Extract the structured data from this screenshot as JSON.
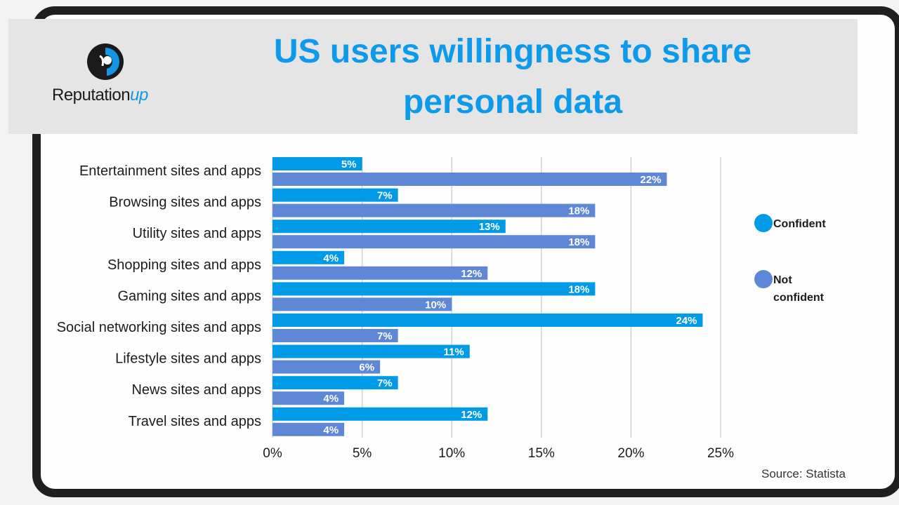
{
  "title_lines": [
    "US users willingness to share",
    "personal data"
  ],
  "logo": {
    "text_main": "Reputation",
    "text_accent": "up"
  },
  "source": "Source: Statista",
  "colors": {
    "confident": "#019ae6",
    "not_confident": "#5e87d6",
    "title": "#0e9aea",
    "grid": "#c8c8c8"
  },
  "chart_data": {
    "type": "bar",
    "orientation": "horizontal",
    "title": "US users willingness to share personal data",
    "categories": [
      "Entertainment sites and apps",
      "Browsing sites and apps",
      "Utility sites and apps",
      "Shopping sites and apps",
      "Gaming sites and apps",
      "Social networking sites and apps",
      "Lifestyle sites and apps",
      "News sites and apps",
      "Travel sites and apps"
    ],
    "series": [
      {
        "name": "Confident",
        "color": "#019ae6",
        "values": [
          5,
          7,
          13,
          4,
          18,
          24,
          11,
          7,
          12
        ]
      },
      {
        "name": "Not confident",
        "color": "#5e87d6",
        "values": [
          22,
          18,
          18,
          12,
          10,
          7,
          6,
          4,
          4
        ]
      }
    ],
    "xlim": [
      0,
      25
    ],
    "xticks": [
      "0%",
      "5%",
      "10%",
      "15%",
      "20%",
      "25%"
    ],
    "value_suffix": "%",
    "grid": true,
    "legend": "right",
    "legend_lines": [
      [
        "Confident"
      ],
      [
        "Not",
        "confident"
      ]
    ]
  }
}
